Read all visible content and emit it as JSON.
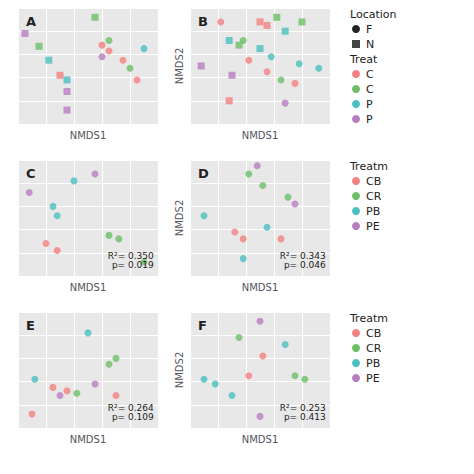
{
  "chart_data": [
    {
      "type": "scatter",
      "title": "A",
      "xlabel": "NMDS1",
      "x": [
        0.55,
        0.05,
        0.15,
        0.22,
        0.3,
        0.35,
        0.35,
        0.35,
        0.6,
        0.65,
        0.6,
        0.65,
        0.75,
        0.8,
        0.9,
        0.85
      ],
      "values": [
        0.92,
        0.78,
        0.67,
        0.55,
        0.42,
        0.38,
        0.28,
        0.12,
        0.68,
        0.63,
        0.58,
        0.72,
        0.55,
        0.48,
        0.65,
        0.38
      ],
      "colors": [
        "#6dbf67",
        "#b87dbf",
        "#6dbf67",
        "#4bbfbf",
        "#f28080",
        "#4bbfbf",
        "#b87dbf",
        "#b87dbf",
        "#f28080",
        "#f28080",
        "#b87dbf",
        "#6dbf67",
        "#f28080",
        "#6dbf67",
        "#4bbfbf",
        "#f28080"
      ],
      "markers": [
        "square",
        "square",
        "square",
        "square",
        "square",
        "square",
        "square",
        "square",
        "circle",
        "circle",
        "circle",
        "circle",
        "circle",
        "circle",
        "circle",
        "circle"
      ],
      "xlim": [
        0,
        1
      ],
      "ylim": [
        0,
        1
      ],
      "xticks": [
        0,
        0.2,
        0.4,
        0.6,
        0.8,
        1
      ],
      "yticks": [
        0,
        0.2,
        0.4,
        0.6,
        0.8,
        1
      ],
      "grid": true,
      "tick_labels": false
    },
    {
      "type": "scatter",
      "title": "B",
      "xlabel": "NMDS1",
      "ylabel": "NMDS2",
      "x": [
        0.08,
        0.28,
        0.35,
        0.5,
        0.55,
        0.62,
        0.68,
        0.8,
        0.3,
        0.5,
        0.28,
        0.22,
        0.38,
        0.42,
        0.55,
        0.58,
        0.65,
        0.75,
        0.78,
        0.92,
        0.68
      ],
      "values": [
        0.5,
        0.72,
        0.68,
        0.88,
        0.85,
        0.92,
        0.8,
        0.88,
        0.42,
        0.65,
        0.2,
        0.88,
        0.72,
        0.55,
        0.45,
        0.58,
        0.38,
        0.35,
        0.52,
        0.48,
        0.18
      ],
      "colors": [
        "#b87dbf",
        "#4bbfbf",
        "#6dbf67",
        "#f28080",
        "#f28080",
        "#6dbf67",
        "#4bbfbf",
        "#6dbf67",
        "#b87dbf",
        "#4bbfbf",
        "#f28080",
        "#f28080",
        "#6dbf67",
        "#f28080",
        "#f28080",
        "#4bbfbf",
        "#6dbf67",
        "#f28080",
        "#4bbfbf",
        "#4bbfbf",
        "#b87dbf"
      ],
      "markers": [
        "square",
        "square",
        "square",
        "square",
        "square",
        "square",
        "square",
        "square",
        "square",
        "square",
        "square",
        "circle",
        "circle",
        "circle",
        "circle",
        "circle",
        "circle",
        "circle",
        "circle",
        "circle",
        "circle"
      ],
      "xlim": [
        0,
        1
      ],
      "ylim": [
        0,
        1
      ],
      "xticks": [
        0,
        0.2,
        0.4,
        0.6,
        0.8,
        1
      ],
      "yticks": [
        0,
        0.2,
        0.4,
        0.6,
        0.8,
        1
      ],
      "grid": true,
      "tick_labels": false
    },
    {
      "type": "scatter",
      "title": "C",
      "xlabel": "NMDS1",
      "annotation": "R²= 0.350\np= 0.019",
      "x": [
        0.08,
        0.25,
        0.28,
        0.4,
        0.55,
        0.2,
        0.28,
        0.65,
        0.72,
        0.9
      ],
      "values": [
        0.72,
        0.6,
        0.52,
        0.82,
        0.88,
        0.28,
        0.22,
        0.35,
        0.32,
        0.12
      ],
      "colors": [
        "#b87dbf",
        "#4bbfbf",
        "#4bbfbf",
        "#4bbfbf",
        "#b87dbf",
        "#f28080",
        "#f28080",
        "#6dbf67",
        "#6dbf67",
        "#6dbf67"
      ],
      "markers": [
        "circle",
        "circle",
        "circle",
        "circle",
        "circle",
        "circle",
        "circle",
        "circle",
        "circle",
        "circle"
      ],
      "xlim": [
        0,
        1
      ],
      "ylim": [
        0,
        1
      ],
      "xticks": [
        0,
        0.2,
        0.4,
        0.6,
        0.8,
        1
      ],
      "yticks": [
        0,
        0.2,
        0.4,
        0.6,
        0.8,
        1
      ],
      "grid": true,
      "tick_labels": false
    },
    {
      "type": "scatter",
      "title": "D",
      "xlabel": "NMDS1",
      "ylabel": "NMDS2",
      "annotation": "R²= 0.343\np= 0.046",
      "x": [
        0.1,
        0.32,
        0.38,
        0.42,
        0.48,
        0.52,
        0.55,
        0.65,
        0.7,
        0.75,
        0.38
      ],
      "values": [
        0.52,
        0.38,
        0.32,
        0.88,
        0.95,
        0.78,
        0.42,
        0.32,
        0.68,
        0.62,
        0.15
      ],
      "colors": [
        "#4bbfbf",
        "#f28080",
        "#f28080",
        "#6dbf67",
        "#b87dbf",
        "#6dbf67",
        "#4bbfbf",
        "#f28080",
        "#6dbf67",
        "#b87dbf",
        "#4bbfbf"
      ],
      "markers": [
        "circle",
        "circle",
        "circle",
        "circle",
        "circle",
        "circle",
        "circle",
        "circle",
        "circle",
        "circle",
        "circle"
      ],
      "xlim": [
        0,
        1
      ],
      "ylim": [
        0,
        1
      ],
      "xticks": [
        0,
        0.2,
        0.4,
        0.6,
        0.8,
        1
      ],
      "yticks": [
        0,
        0.2,
        0.4,
        0.6,
        0.8,
        1
      ],
      "grid": true,
      "tick_labels": false
    },
    {
      "type": "scatter",
      "title": "E",
      "xlabel": "NMDS1",
      "annotation": "R²= 0.264\np= 0.109",
      "x": [
        0.1,
        0.12,
        0.25,
        0.3,
        0.35,
        0.42,
        0.5,
        0.55,
        0.65,
        0.7,
        0.7
      ],
      "values": [
        0.12,
        0.42,
        0.35,
        0.28,
        0.32,
        0.3,
        0.82,
        0.38,
        0.55,
        0.6,
        0.28
      ],
      "colors": [
        "#f28080",
        "#4bbfbf",
        "#f28080",
        "#b87dbf",
        "#f28080",
        "#6dbf67",
        "#4bbfbf",
        "#b87dbf",
        "#6dbf67",
        "#6dbf67",
        "#f28080"
      ],
      "markers": [
        "circle",
        "circle",
        "circle",
        "circle",
        "circle",
        "circle",
        "circle",
        "circle",
        "circle",
        "circle",
        "circle"
      ],
      "xlim": [
        0,
        1
      ],
      "ylim": [
        0,
        1
      ],
      "xticks": [
        0,
        0.2,
        0.4,
        0.6,
        0.8,
        1
      ],
      "yticks": [
        0,
        0.2,
        0.4,
        0.6,
        0.8,
        1
      ],
      "grid": true,
      "tick_labels": false
    },
    {
      "type": "scatter",
      "title": "F",
      "xlabel": "NMDS1",
      "ylabel": "NMDS2",
      "annotation": "R²= 0.253\np= 0.413",
      "x": [
        0.1,
        0.18,
        0.3,
        0.35,
        0.42,
        0.5,
        0.52,
        0.68,
        0.75,
        0.82,
        0.5
      ],
      "values": [
        0.42,
        0.38,
        0.28,
        0.78,
        0.45,
        0.92,
        0.62,
        0.72,
        0.45,
        0.42,
        0.1
      ],
      "colors": [
        "#4bbfbf",
        "#4bbfbf",
        "#4bbfbf",
        "#6dbf67",
        "#f28080",
        "#b87dbf",
        "#f28080",
        "#4bbfbf",
        "#6dbf67",
        "#6dbf67",
        "#b87dbf"
      ],
      "markers": [
        "circle",
        "circle",
        "circle",
        "circle",
        "circle",
        "circle",
        "circle",
        "circle",
        "circle",
        "circle",
        "circle"
      ],
      "xlim": [
        0,
        1
      ],
      "ylim": [
        0,
        1
      ],
      "xticks": [
        0,
        0.2,
        0.4,
        0.6,
        0.8,
        1
      ],
      "yticks": [
        0,
        0.2,
        0.4,
        0.6,
        0.8,
        1
      ],
      "grid": true,
      "tick_labels": false
    }
  ],
  "legends": [
    [
      {
        "title": "Location",
        "entries": [
          {
            "name": "F",
            "marker": "circle",
            "color": "#222222"
          },
          {
            "name": "N",
            "marker": "square",
            "color": "#444444"
          }
        ]
      },
      {
        "title": "Treat",
        "entries": [
          {
            "name": "C",
            "marker": "circle",
            "color": "#f28080"
          },
          {
            "name": "C",
            "marker": "circle",
            "color": "#6dbf67"
          },
          {
            "name": "P",
            "marker": "circle",
            "color": "#4bbfbf"
          },
          {
            "name": "P",
            "marker": "circle",
            "color": "#b87dbf"
          }
        ]
      }
    ],
    [
      {
        "title": "Treatm",
        "entries": [
          {
            "name": "CB",
            "marker": "circle",
            "color": "#f28080"
          },
          {
            "name": "CR",
            "marker": "circle",
            "color": "#6dbf67"
          },
          {
            "name": "PB",
            "marker": "circle",
            "color": "#4bbfbf"
          },
          {
            "name": "PE",
            "marker": "circle",
            "color": "#b87dbf"
          }
        ]
      }
    ],
    [
      {
        "title": "Treatm",
        "entries": [
          {
            "name": "CB",
            "marker": "circle",
            "color": "#f28080"
          },
          {
            "name": "CR",
            "marker": "circle",
            "color": "#6dbf67"
          },
          {
            "name": "PB",
            "marker": "circle",
            "color": "#4bbfbf"
          },
          {
            "name": "PE",
            "marker": "circle",
            "color": "#b87dbf"
          }
        ]
      }
    ]
  ]
}
